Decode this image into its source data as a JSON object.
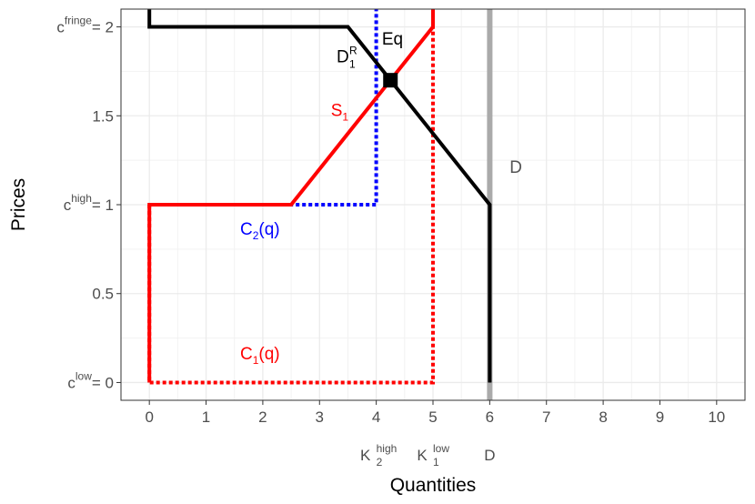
{
  "chart_data": {
    "type": "line",
    "xlabel": "Quantities",
    "ylabel": "Prices",
    "xlim": [
      -0.5,
      10.5
    ],
    "ylim": [
      -0.1,
      2.1
    ],
    "grid": true,
    "x_ticks": [
      0,
      1,
      2,
      3,
      4,
      5,
      6,
      7,
      8,
      9,
      10
    ],
    "y_ticks": [
      {
        "value": 0,
        "base": "c",
        "sup": "low",
        "rhs": "= 0"
      },
      {
        "value": 0.5,
        "label": "0.5"
      },
      {
        "value": 1,
        "base": "c",
        "sup": "high",
        "rhs": "= 1"
      },
      {
        "value": 1.5,
        "label": "1.5"
      },
      {
        "value": 2,
        "base": "c",
        "sup": "fringe",
        "rhs": "= 2"
      }
    ],
    "extra_x_labels": [
      {
        "x": 4,
        "base": "K",
        "sub": "2",
        "sup": "high"
      },
      {
        "x": 5,
        "base": "K",
        "sub": "1",
        "sup": "low"
      },
      {
        "x": 6,
        "base": "D"
      }
    ],
    "series": [
      {
        "key": "D",
        "color": "#aaaaaa",
        "dash": "solid",
        "width": 6,
        "points": [
          [
            6,
            -0.1
          ],
          [
            6,
            2.1
          ]
        ]
      },
      {
        "key": "C1",
        "color": "#ff0000",
        "dash": "dotted",
        "width": 4,
        "points": [
          [
            0,
            1
          ],
          [
            0,
            0
          ],
          [
            5,
            0
          ],
          [
            5,
            2.1
          ]
        ]
      },
      {
        "key": "C2",
        "color": "#0000ff",
        "dash": "dotted",
        "width": 4,
        "points": [
          [
            0,
            1
          ],
          [
            4,
            1
          ],
          [
            4,
            2.1
          ]
        ]
      },
      {
        "key": "S1",
        "color": "#ff0000",
        "dash": "solid",
        "width": 4,
        "points": [
          [
            0,
            0
          ],
          [
            0,
            1
          ],
          [
            2.5,
            1
          ],
          [
            5,
            2
          ],
          [
            5,
            2.1
          ]
        ]
      },
      {
        "key": "D1R",
        "color": "#000000",
        "dash": "solid",
        "width": 4,
        "points": [
          [
            0,
            2.1
          ],
          [
            0,
            2
          ],
          [
            3.5,
            2
          ],
          [
            5,
            1.4
          ],
          [
            6,
            1
          ],
          [
            6,
            0
          ]
        ]
      }
    ],
    "equilibrium": {
      "x": 4.25,
      "y": 1.7
    },
    "annotations": [
      {
        "key": "D1R",
        "x": 3.3,
        "y": 1.8,
        "base": "D",
        "sub": "1",
        "sup": "R",
        "color": "#000000"
      },
      {
        "key": "Eq",
        "x": 4.1,
        "y": 1.9,
        "text": "Eq",
        "color": "#000000"
      },
      {
        "key": "S1",
        "x": 3.2,
        "y": 1.5,
        "base": "S",
        "sub": "1",
        "color": "#ff0000"
      },
      {
        "key": "D",
        "x": 6.35,
        "y": 1.18,
        "text": "D",
        "color": "#555555"
      },
      {
        "key": "C2",
        "x": 1.6,
        "y": 0.83,
        "base": "C",
        "sub": "2",
        "rest": "(q)",
        "color": "#0000ff"
      },
      {
        "key": "C1",
        "x": 1.6,
        "y": 0.13,
        "base": "C",
        "sub": "1",
        "rest": "(q)",
        "color": "#ff0000"
      }
    ]
  }
}
